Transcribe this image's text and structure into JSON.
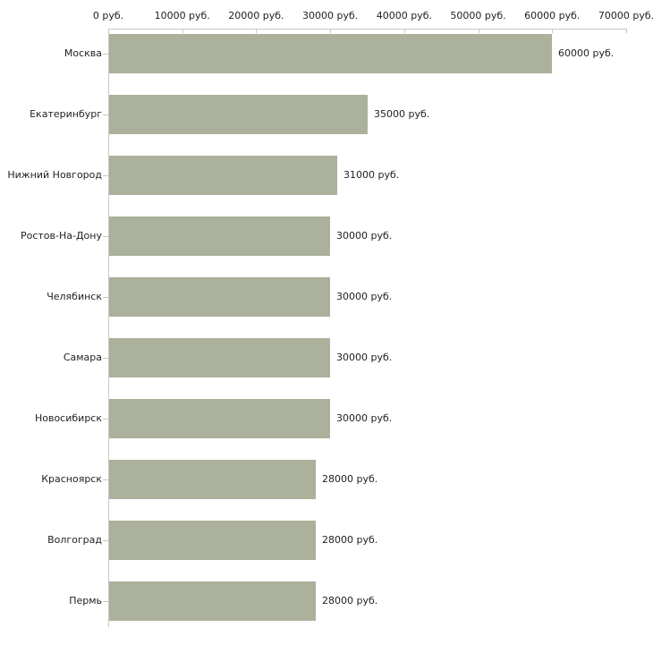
{
  "chart_data": {
    "type": "bar",
    "orientation": "horizontal",
    "title": "",
    "xlabel": "",
    "ylabel": "",
    "grid": false,
    "legend": null,
    "xlim": [
      0,
      70000
    ],
    "categories": [
      "Москва",
      "Екатеринбург",
      "Нижний Новгород",
      "Ростов-На-Дону",
      "Челябинск",
      "Самара",
      "Новосибирск",
      "Красноярск",
      "Волгоград",
      "Пермь"
    ],
    "values": [
      60000,
      35000,
      31000,
      30000,
      30000,
      30000,
      30000,
      28000,
      28000,
      28000
    ],
    "value_labels": [
      "60000 руб.",
      "35000 руб.",
      "31000 руб.",
      "30000 руб.",
      "30000 руб.",
      "30000 руб.",
      "30000 руб.",
      "28000 руб.",
      "28000 руб.",
      "28000 руб."
    ],
    "x_ticks": [
      {
        "value": 0,
        "label": "0 руб."
      },
      {
        "value": 10000,
        "label": "10000 руб."
      },
      {
        "value": 20000,
        "label": "20000 руб."
      },
      {
        "value": 30000,
        "label": "30000 руб."
      },
      {
        "value": 40000,
        "label": "40000 руб."
      },
      {
        "value": 50000,
        "label": "50000 руб."
      },
      {
        "value": 60000,
        "label": "60000 руб."
      },
      {
        "value": 70000,
        "label": "70000 руб."
      }
    ],
    "colors": {
      "bar": "#abb19a",
      "axis": "#c9c9c9",
      "tick": "#c9cba3",
      "text": "#1f1f1f"
    }
  }
}
